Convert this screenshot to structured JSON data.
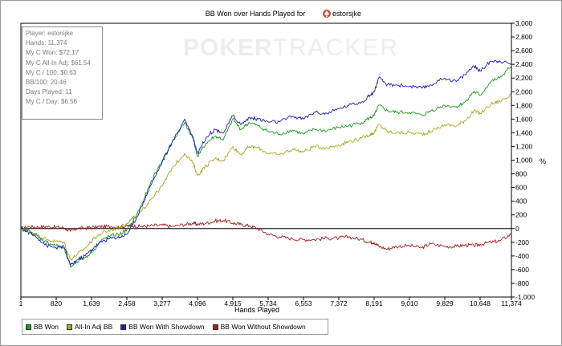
{
  "chart_data": {
    "type": "line",
    "title": "BB Won over Hands Played for",
    "player": "estorsjke",
    "xlabel": "Hands Played",
    "ylabel": "%",
    "xlim": [
      1,
      11374
    ],
    "ylim": [
      -1000,
      3000
    ],
    "x_ticks": [
      "1",
      "820",
      "1,639",
      "2,458",
      "3,277",
      "4,096",
      "4,915",
      "5,734",
      "6,553",
      "7,372",
      "8,191",
      "9,010",
      "9,829",
      "10,648",
      "11,374"
    ],
    "y_ticks": [
      "3,000",
      "2,800",
      "2,600",
      "2,400",
      "2,200",
      "2,000",
      "1,800",
      "1,600",
      "1,400",
      "1,200",
      "1,000",
      "800",
      "600",
      "400",
      "200",
      "0",
      "-200",
      "-400",
      "-600",
      "-800",
      "-1,000"
    ],
    "grid": false,
    "legend_position": "bottom-left",
    "watermark": {
      "bold": "POKER",
      "thin": "TRACKER"
    },
    "series": [
      {
        "name": "BB Won",
        "color": "#1e9a1e",
        "x": [
          1,
          200,
          400,
          600,
          820,
          1000,
          1150,
          1300,
          1500,
          1700,
          1900,
          2100,
          2300,
          2458,
          2600,
          2800,
          3000,
          3277,
          3500,
          3800,
          4000,
          4096,
          4300,
          4500,
          4700,
          4915,
          5100,
          5300,
          5500,
          5734,
          6000,
          6300,
          6553,
          6800,
          7100,
          7372,
          7600,
          7900,
          8100,
          8191,
          8300,
          8500,
          8700,
          9010,
          9300,
          9500,
          9829,
          10100,
          10300,
          10500,
          10648,
          10900,
          11100,
          11374
        ],
        "values": [
          0,
          -40,
          -120,
          -200,
          -250,
          -290,
          -560,
          -480,
          -420,
          -300,
          -160,
          -100,
          -80,
          -20,
          100,
          350,
          650,
          1000,
          1250,
          1550,
          1300,
          1050,
          1250,
          1350,
          1300,
          1600,
          1450,
          1550,
          1500,
          1420,
          1380,
          1440,
          1380,
          1450,
          1430,
          1480,
          1500,
          1550,
          1620,
          1650,
          1800,
          1720,
          1700,
          1700,
          1650,
          1720,
          1800,
          1780,
          1850,
          2000,
          1950,
          2150,
          2200,
          2380
        ]
      },
      {
        "name": "All-In Adj BB",
        "color": "#a8a81e",
        "x": [
          1,
          200,
          400,
          600,
          820,
          1000,
          1150,
          1300,
          1500,
          1700,
          1900,
          2100,
          2300,
          2458,
          2600,
          2800,
          3000,
          3277,
          3500,
          3800,
          4000,
          4096,
          4300,
          4500,
          4700,
          4915,
          5100,
          5300,
          5500,
          5734,
          6000,
          6300,
          6553,
          6800,
          7100,
          7372,
          7600,
          7900,
          8100,
          8191,
          8300,
          8500,
          8700,
          9010,
          9300,
          9500,
          9829,
          10100,
          10300,
          10500,
          10648,
          10900,
          11100,
          11374
        ],
        "values": [
          0,
          -30,
          -100,
          -160,
          -190,
          -200,
          -450,
          -380,
          -280,
          -140,
          -60,
          -20,
          20,
          80,
          150,
          250,
          420,
          620,
          880,
          1100,
          950,
          780,
          920,
          1020,
          1000,
          1200,
          1080,
          1200,
          1180,
          1100,
          1080,
          1160,
          1120,
          1200,
          1180,
          1220,
          1270,
          1320,
          1380,
          1400,
          1520,
          1420,
          1400,
          1400,
          1380,
          1420,
          1520,
          1500,
          1580,
          1720,
          1680,
          1820,
          1860,
          1950
        ]
      },
      {
        "name": "BB Won With Showdown",
        "color": "#1e1eb4",
        "x": [
          1,
          200,
          400,
          600,
          820,
          1000,
          1150,
          1300,
          1500,
          1700,
          1900,
          2100,
          2300,
          2458,
          2600,
          2800,
          3000,
          3277,
          3500,
          3800,
          4000,
          4096,
          4300,
          4500,
          4700,
          4915,
          5100,
          5300,
          5500,
          5734,
          6000,
          6300,
          6553,
          6800,
          7100,
          7372,
          7600,
          7900,
          8100,
          8191,
          8300,
          8500,
          8700,
          9010,
          9300,
          9500,
          9829,
          10100,
          10300,
          10500,
          10648,
          10900,
          11100,
          11374
        ],
        "values": [
          0,
          -60,
          -140,
          -250,
          -280,
          -260,
          -540,
          -460,
          -390,
          -270,
          -180,
          -140,
          -120,
          -80,
          60,
          320,
          620,
          970,
          1250,
          1600,
          1320,
          1100,
          1340,
          1450,
          1400,
          1650,
          1520,
          1620,
          1600,
          1560,
          1560,
          1640,
          1600,
          1700,
          1680,
          1750,
          1800,
          1850,
          1950,
          2000,
          2200,
          2100,
          2100,
          2080,
          2050,
          2100,
          2200,
          2150,
          2250,
          2380,
          2300,
          2450,
          2450,
          2400
        ]
      },
      {
        "name": "BB Won Without Showdown",
        "color": "#a01e1e",
        "x": [
          1,
          200,
          400,
          600,
          820,
          1000,
          1150,
          1300,
          1500,
          1700,
          1900,
          2100,
          2300,
          2458,
          2600,
          2800,
          3000,
          3277,
          3500,
          3800,
          4000,
          4096,
          4300,
          4500,
          4700,
          4915,
          5100,
          5300,
          5500,
          5734,
          6000,
          6300,
          6553,
          6800,
          7100,
          7372,
          7600,
          7900,
          8100,
          8191,
          8300,
          8500,
          8700,
          9010,
          9300,
          9500,
          9829,
          10100,
          10300,
          10500,
          10648,
          10900,
          11100,
          11374
        ],
        "values": [
          0,
          30,
          20,
          30,
          20,
          10,
          -40,
          0,
          10,
          20,
          30,
          30,
          20,
          40,
          40,
          30,
          40,
          50,
          30,
          60,
          80,
          60,
          80,
          110,
          120,
          80,
          60,
          40,
          0,
          -80,
          -120,
          -150,
          -160,
          -160,
          -140,
          -140,
          -120,
          -160,
          -200,
          -200,
          -260,
          -300,
          -260,
          -250,
          -280,
          -220,
          -260,
          -260,
          -240,
          -250,
          -230,
          -200,
          -180,
          -80
        ]
      }
    ]
  },
  "stats": [
    "Player: estorsjke",
    "Hands: 11,374",
    "My C Won: $72.17",
    "My C All-In Adj: $61.54",
    "My C / 100: $0.63",
    "BB/100: 20.46",
    "Days Played: 11",
    "My C / Day: $6.56"
  ],
  "legend_items": [
    "BB Won",
    "All-In Adj BB",
    "BB Won With Showdown",
    "BB Won Without Showdown"
  ],
  "icons": {
    "player": "spade-chip-icon"
  }
}
